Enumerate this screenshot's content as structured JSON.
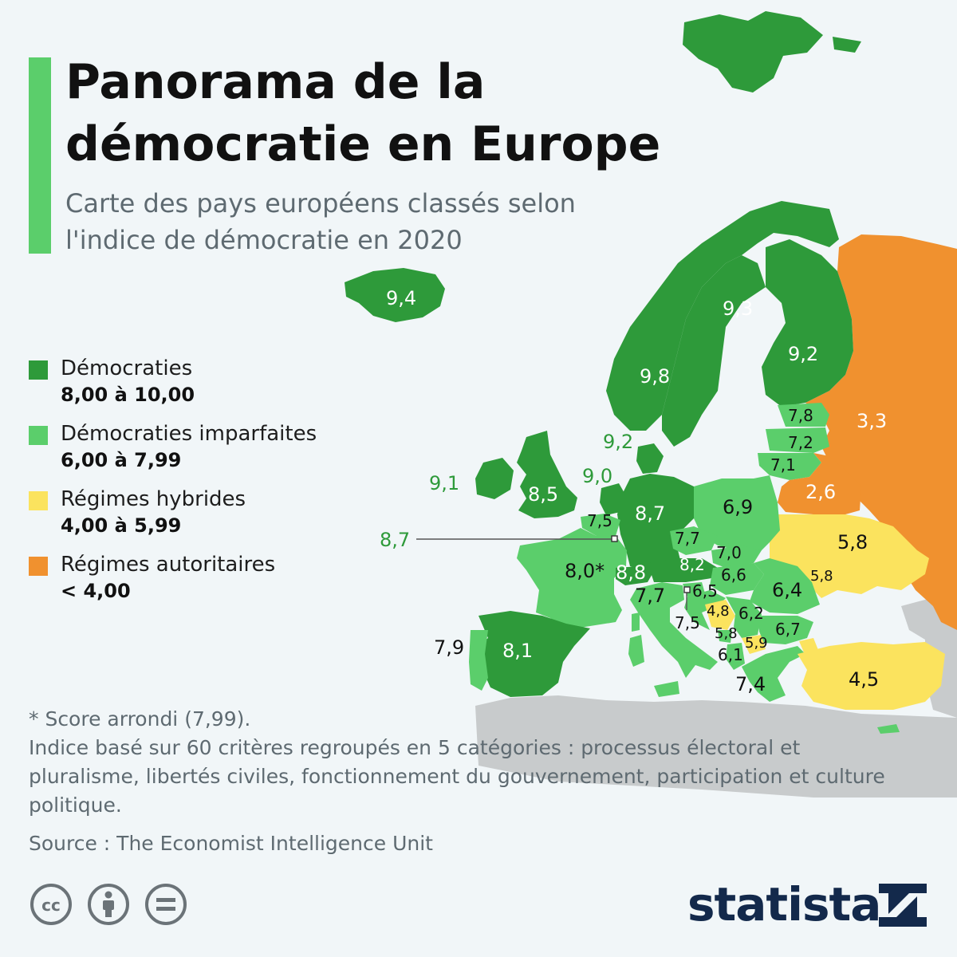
{
  "header": {
    "title": "Panorama de la démocratie en Europe",
    "subtitle": "Carte des pays européens classés selon l'indice de démocratie en 2020"
  },
  "colors": {
    "accent_bar": "#5bce6b",
    "democracies": "#2e9a3a",
    "flawed_democracies": "#5bce6b",
    "hybrid_regimes": "#fbe35e",
    "authoritarian_regimes": "#f0912f",
    "non_european_land": "#c8cbcc",
    "background": "#f1f6f8"
  },
  "legend": [
    {
      "label": "Démocraties",
      "range": "8,00 à 10,00",
      "color": "#2e9a3a"
    },
    {
      "label": "Démocraties imparfaites",
      "range": "6,00 à 7,99",
      "color": "#5bce6b"
    },
    {
      "label": "Régimes hybrides",
      "range": "4,00 à 5,99",
      "color": "#fbe35e"
    },
    {
      "label": "Régimes autoritaires",
      "range": "< 4,00",
      "color": "#f0912f"
    }
  ],
  "map_labels": [
    "9,4",
    "9,3",
    "9,2",
    "9,8",
    "9,2",
    "9,1",
    "8,5",
    "9,0",
    "8,7",
    "7,5",
    "8,7",
    "6,9",
    "7,8",
    "7,2",
    "7,1",
    "3,3",
    "2,6",
    "5,8",
    "8,0*",
    "8,8",
    "7,7",
    "7,0",
    "8,2",
    "6,6",
    "6,4",
    "5,8",
    "7,7",
    "6,5",
    "7,5",
    "4,8",
    "6,2",
    "5,8",
    "5,9",
    "6,7",
    "6,1",
    "7,4",
    "7,9",
    "8,1",
    "4,5"
  ],
  "notes": {
    "footnote": "* Score arrondi (7,99).",
    "methodology": "Indice basé sur 60 critères regroupés en 5 catégories : processus électoral et pluralisme, libertés civiles, fonctionnement du gouvernement, participation et culture politique.",
    "source": "Source : The Economist Intelligence Unit"
  },
  "footer": {
    "brand": "statista",
    "license_icons": [
      "cc-icon",
      "attribution-icon",
      "no-derivatives-icon"
    ]
  }
}
